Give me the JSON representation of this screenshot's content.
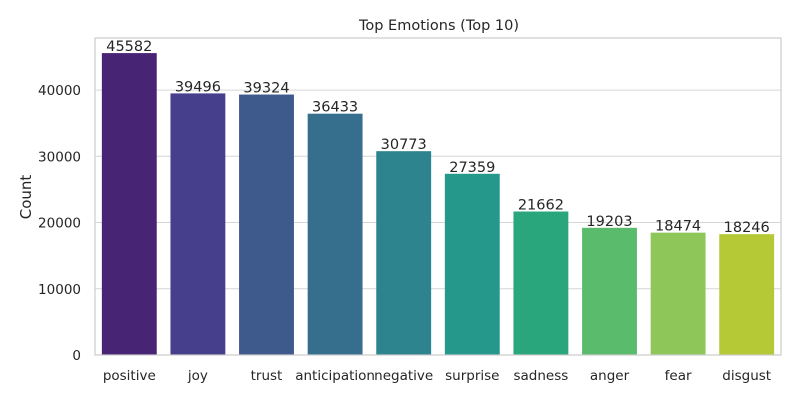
{
  "chart_data": {
    "type": "bar",
    "title": "Top Emotions (Top 10)",
    "xlabel": "",
    "ylabel": "Count",
    "categories": [
      "positive",
      "joy",
      "trust",
      "anticipation",
      "negative",
      "surprise",
      "sadness",
      "anger",
      "fear",
      "disgust"
    ],
    "values": [
      45582,
      39496,
      39324,
      36433,
      30773,
      27359,
      21662,
      19203,
      18474,
      18246
    ],
    "colors": [
      "#482475",
      "#46408c",
      "#3e5a8d",
      "#366f8e",
      "#2d838e",
      "#25978b",
      "#2aa67c",
      "#5bbb6c",
      "#8ec65a",
      "#b5c936"
    ],
    "yticks": [
      0,
      10000,
      20000,
      30000,
      40000
    ],
    "ylim": [
      0,
      47861
    ],
    "grid": "y",
    "legend": "none"
  }
}
